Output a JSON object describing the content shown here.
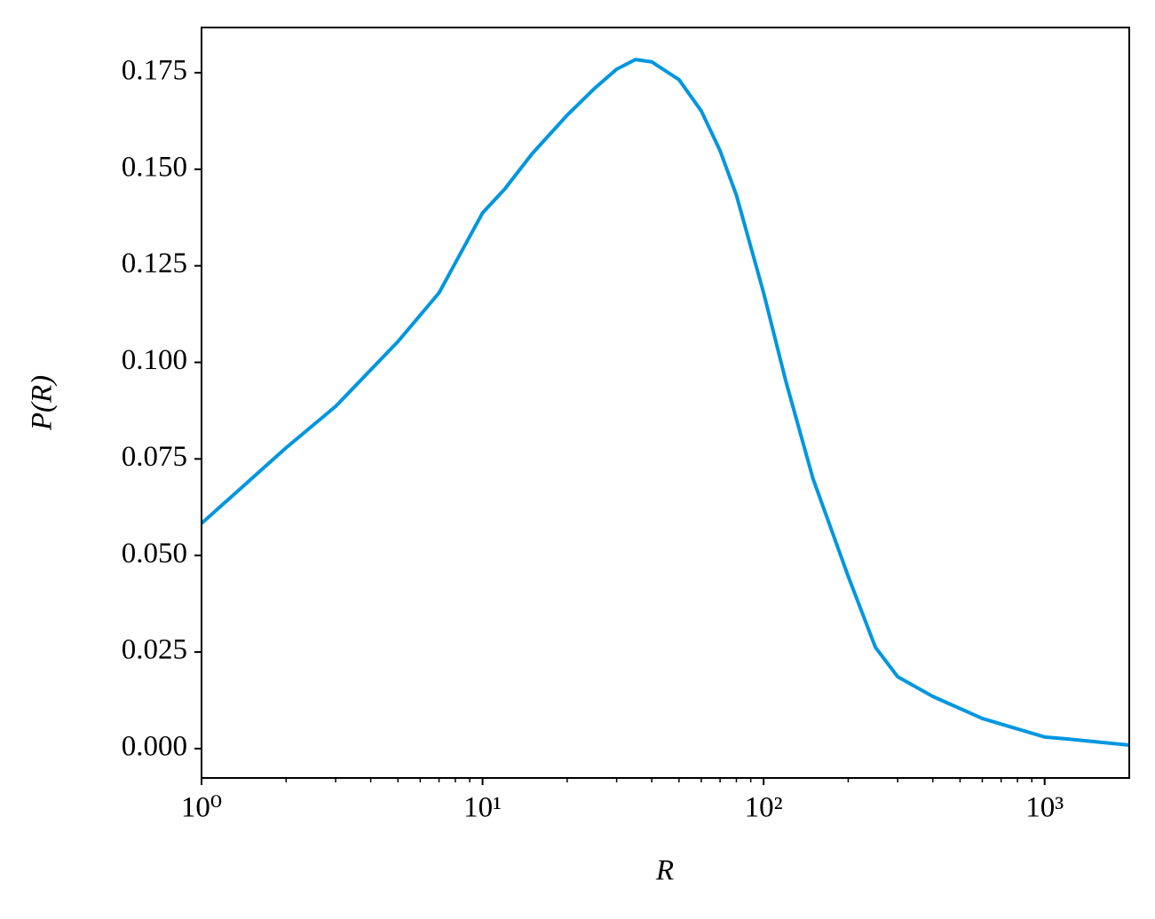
{
  "chart_data": {
    "type": "line",
    "xlabel": "R",
    "ylabel": "P(R)",
    "x": [
      1,
      2,
      3,
      5,
      7,
      10,
      12,
      15,
      20,
      25,
      30,
      35,
      40,
      50,
      60,
      70,
      80,
      100,
      120,
      150,
      200,
      250,
      300,
      400,
      600,
      1000,
      1200,
      2000
    ],
    "series": [
      {
        "color": "#0096e0",
        "values": [
          0.0583,
          0.0779,
          0.0886,
          0.1054,
          0.118,
          0.1387,
          0.1449,
          0.154,
          0.164,
          0.1709,
          0.1759,
          0.1784,
          0.1778,
          0.1732,
          0.1651,
          0.1548,
          0.1433,
          0.118,
          0.0951,
          0.0698,
          0.0446,
          0.0262,
          0.0186,
          0.0135,
          0.0078,
          0.003,
          0.0025,
          0.0009
        ]
      }
    ],
    "xscale": "log",
    "xlim": [
      1,
      2000
    ],
    "ylim": [
      -0.0076,
      0.1867
    ],
    "xticks": [
      {
        "value": 1,
        "label": "10⁰"
      },
      {
        "value": 10,
        "label": "10¹"
      },
      {
        "value": 100,
        "label": "10²"
      },
      {
        "value": 1000,
        "label": "10³"
      }
    ],
    "xticks_minor": [
      2,
      3,
      4,
      5,
      6,
      7,
      8,
      9,
      20,
      30,
      40,
      50,
      60,
      70,
      80,
      90,
      200,
      300,
      400,
      500,
      600,
      700,
      800,
      900
    ],
    "yticks": [
      {
        "value": 0,
        "label": "0.000"
      },
      {
        "value": 0.025,
        "label": "0.025"
      },
      {
        "value": 0.05,
        "label": "0.050"
      },
      {
        "value": 0.075,
        "label": "0.075"
      },
      {
        "value": 0.1,
        "label": "0.100"
      },
      {
        "value": 0.125,
        "label": "0.125"
      },
      {
        "value": 0.15,
        "label": "0.150"
      },
      {
        "value": 0.175,
        "label": "0.175"
      }
    ]
  }
}
